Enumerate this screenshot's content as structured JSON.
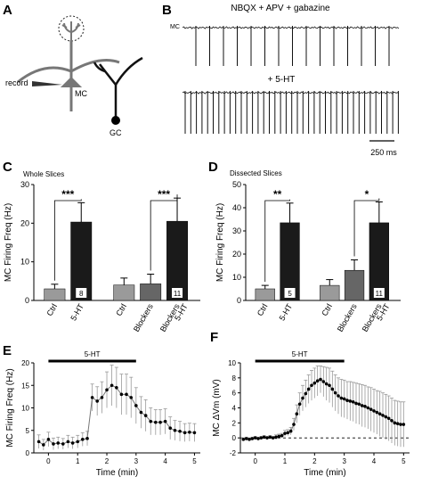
{
  "panels": {
    "A": {
      "letter": "A",
      "record": "record",
      "mc": "MC",
      "gc": "GC"
    },
    "B": {
      "letter": "B",
      "title": "NBQX + APV + gabazine",
      "trace_label": "MC",
      "condition2": "+ 5-HT",
      "scalebar": "250 ms"
    },
    "C": {
      "letter": "C",
      "subtitle": "Whole Slices"
    },
    "D": {
      "letter": "D",
      "subtitle": "Dissected Slices"
    },
    "E": {
      "letter": "E",
      "bar_label": "5-HT"
    },
    "F": {
      "letter": "F",
      "bar_label": "5-HT"
    }
  },
  "chart_data": [
    {
      "panel": "C",
      "type": "bar",
      "ylabel": "MC Firing Freq (Hz)",
      "ylim": [
        0,
        30
      ],
      "yticks": [
        0,
        10,
        20,
        30
      ],
      "categories": [
        "Ctrl",
        "5-HT",
        "Ctrl",
        "Blockers",
        "Blockers\n5-HT"
      ],
      "values": [
        3.0,
        20.3,
        4.0,
        4.3,
        20.5
      ],
      "errors": [
        1.2,
        5.0,
        1.8,
        2.5,
        6.0
      ],
      "colors": [
        "#9a9a9a",
        "#1a1a1a",
        "#9a9a9a",
        "#666666",
        "#1a1a1a"
      ],
      "n_labels": [
        "",
        "8",
        "",
        "",
        "11"
      ],
      "significance": [
        {
          "from": 0,
          "to": 1,
          "label": "***"
        },
        {
          "from": 3,
          "to": 4,
          "label": "***"
        }
      ]
    },
    {
      "panel": "D",
      "type": "bar",
      "ylabel": "MC Firing Freq (Hz)",
      "ylim": [
        0,
        50
      ],
      "yticks": [
        0,
        10,
        20,
        30,
        40,
        50
      ],
      "categories": [
        "Ctrl",
        "5-HT",
        "Ctrl",
        "Blockers",
        "Blockers\n5-HT"
      ],
      "values": [
        5.0,
        33.5,
        6.5,
        13.0,
        33.5
      ],
      "errors": [
        1.5,
        8.5,
        2.5,
        4.5,
        9.0
      ],
      "colors": [
        "#9a9a9a",
        "#1a1a1a",
        "#9a9a9a",
        "#666666",
        "#1a1a1a"
      ],
      "n_labels": [
        "",
        "5",
        "",
        "",
        "11"
      ],
      "significance": [
        {
          "from": 0,
          "to": 1,
          "label": "**"
        },
        {
          "from": 3,
          "to": 4,
          "label": "*"
        }
      ]
    },
    {
      "panel": "E",
      "type": "line",
      "xlabel": "Time (min)",
      "ylabel": "MC Firing Freq (Hz)",
      "xlim": [
        -0.5,
        5.2
      ],
      "ylim": [
        0,
        20
      ],
      "xticks": [
        0,
        1,
        2,
        3,
        4,
        5
      ],
      "yticks": [
        0,
        5,
        10,
        15,
        20
      ],
      "drug_window": [
        0,
        3
      ],
      "x": [
        -0.33,
        -0.17,
        0,
        0.17,
        0.33,
        0.5,
        0.67,
        0.83,
        1.0,
        1.17,
        1.33,
        1.5,
        1.67,
        1.83,
        2.0,
        2.17,
        2.33,
        2.5,
        2.67,
        2.83,
        3.0,
        3.17,
        3.33,
        3.5,
        3.67,
        3.83,
        4.0,
        4.17,
        4.33,
        4.5,
        4.67,
        4.83,
        5.0
      ],
      "y": [
        2.5,
        1.8,
        3.0,
        2.0,
        2.2,
        2.0,
        2.5,
        2.2,
        2.5,
        3.0,
        3.2,
        12.3,
        11.5,
        12.3,
        14.0,
        15.0,
        14.5,
        13.0,
        13.0,
        12.3,
        10.5,
        9.0,
        8.3,
        7.0,
        6.8,
        6.8,
        7.0,
        5.5,
        5.0,
        4.8,
        4.5,
        4.6,
        4.5
      ],
      "errors": [
        1.5,
        1.2,
        1.6,
        1.3,
        1.3,
        1.2,
        1.4,
        1.3,
        1.4,
        1.5,
        1.6,
        3.0,
        3.2,
        3.5,
        4.0,
        4.5,
        4.5,
        4.5,
        4.5,
        4.5,
        4.0,
        3.5,
        3.5,
        3.0,
        2.8,
        2.8,
        2.8,
        2.5,
        2.2,
        2.2,
        2.0,
        2.0,
        2.0
      ]
    },
    {
      "panel": "F",
      "type": "line",
      "xlabel": "Time (min)",
      "ylabel": "MC ΔVm (mV)",
      "xlim": [
        -0.5,
        5.2
      ],
      "ylim": [
        -2,
        10
      ],
      "xticks": [
        0,
        1,
        2,
        3,
        4,
        5
      ],
      "yticks": [
        -2,
        0,
        2,
        4,
        6,
        8,
        10
      ],
      "drug_window": [
        0,
        3
      ],
      "baseline": 0,
      "x": [
        -0.4,
        -0.3,
        -0.2,
        -0.1,
        0.0,
        0.1,
        0.2,
        0.3,
        0.4,
        0.5,
        0.6,
        0.7,
        0.8,
        0.9,
        1.0,
        1.1,
        1.2,
        1.3,
        1.4,
        1.5,
        1.6,
        1.7,
        1.8,
        1.9,
        2.0,
        2.1,
        2.2,
        2.3,
        2.4,
        2.5,
        2.6,
        2.7,
        2.8,
        2.9,
        3.0,
        3.1,
        3.2,
        3.3,
        3.4,
        3.5,
        3.6,
        3.7,
        3.8,
        3.9,
        4.0,
        4.1,
        4.2,
        4.3,
        4.4,
        4.5,
        4.6,
        4.7,
        4.8,
        4.9,
        5.0
      ],
      "y": [
        -0.2,
        -0.1,
        -0.2,
        -0.1,
        0.0,
        -0.1,
        0.0,
        0.1,
        0.0,
        0.1,
        0.0,
        0.1,
        0.2,
        0.3,
        0.6,
        0.7,
        0.9,
        1.8,
        3.2,
        4.5,
        5.3,
        5.9,
        6.5,
        7.0,
        7.3,
        7.6,
        7.8,
        7.5,
        7.2,
        7.0,
        6.5,
        6.0,
        5.6,
        5.3,
        5.2,
        5.0,
        4.9,
        4.8,
        4.6,
        4.5,
        4.3,
        4.2,
        4.0,
        3.8,
        3.6,
        3.4,
        3.2,
        3.0,
        2.8,
        2.6,
        2.3,
        2.0,
        1.9,
        1.8,
        1.8
      ],
      "errors": [
        0.2,
        0.2,
        0.2,
        0.2,
        0.2,
        0.2,
        0.2,
        0.2,
        0.2,
        0.2,
        0.2,
        0.3,
        0.3,
        0.3,
        0.4,
        0.4,
        0.5,
        0.8,
        1.2,
        1.5,
        1.7,
        1.8,
        1.9,
        2.0,
        2.0,
        2.0,
        1.8,
        2.0,
        2.2,
        2.3,
        2.4,
        2.4,
        2.4,
        2.5,
        2.5,
        2.5,
        2.6,
        2.6,
        2.7,
        2.7,
        2.8,
        2.8,
        2.8,
        2.9,
        2.9,
        2.9,
        3.0,
        3.0,
        3.0,
        3.0,
        3.0,
        3.0,
        3.0,
        3.0,
        3.0
      ]
    }
  ]
}
